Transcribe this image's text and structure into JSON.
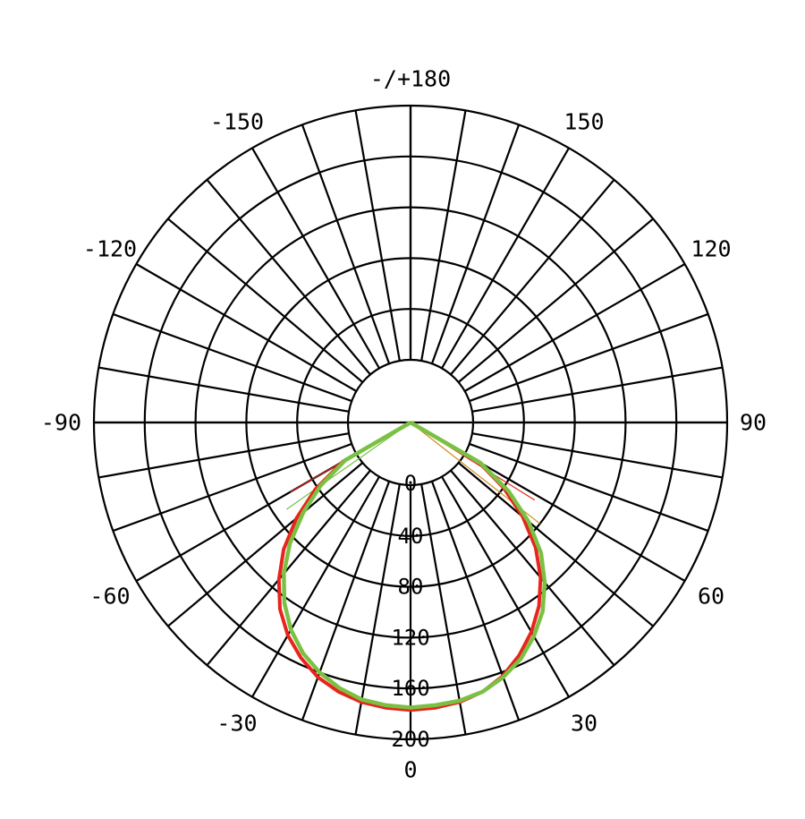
{
  "chart_data": {
    "type": "polar",
    "title": "",
    "angle_ticks": [
      {
        "angle": 180,
        "label": "-/+180"
      },
      {
        "angle": -150,
        "label": "-150"
      },
      {
        "angle": 150,
        "label": "150"
      },
      {
        "angle": -120,
        "label": "-120"
      },
      {
        "angle": 120,
        "label": "120"
      },
      {
        "angle": -90,
        "label": "-90"
      },
      {
        "angle": 90,
        "label": "90"
      },
      {
        "angle": -60,
        "label": "-60"
      },
      {
        "angle": 60,
        "label": "60"
      },
      {
        "angle": -30,
        "label": "-30"
      },
      {
        "angle": 30,
        "label": "30"
      },
      {
        "angle": 0,
        "label": "0"
      }
    ],
    "radial_ticks": [
      "0",
      "40",
      "80",
      "120",
      "160",
      "200"
    ],
    "radial_values": [
      0,
      40,
      80,
      120,
      160,
      200
    ],
    "radial_max": 200,
    "spoke_step_deg": 10,
    "series": [
      {
        "color": "#e8241c",
        "stroke_width": 4,
        "points": [
          [
            -60,
            12
          ],
          [
            -55,
            42
          ],
          [
            -50,
            68
          ],
          [
            -45,
            92
          ],
          [
            -40,
            112
          ],
          [
            -35,
            130
          ],
          [
            -30,
            144
          ],
          [
            -25,
            155
          ],
          [
            -20,
            164
          ],
          [
            -15,
            170
          ],
          [
            -10,
            174
          ],
          [
            -5,
            176
          ],
          [
            0,
            177
          ],
          [
            5,
            176
          ],
          [
            10,
            174
          ],
          [
            15,
            170
          ],
          [
            20,
            163
          ],
          [
            25,
            153
          ],
          [
            30,
            141
          ],
          [
            35,
            127
          ],
          [
            40,
            110
          ],
          [
            45,
            90
          ],
          [
            50,
            66
          ],
          [
            55,
            40
          ],
          [
            60,
            12
          ]
        ]
      },
      {
        "color": "#7ac143",
        "stroke_width": 4.5,
        "points": [
          [
            -60,
            10
          ],
          [
            -55,
            37
          ],
          [
            -50,
            61
          ],
          [
            -45,
            85
          ],
          [
            -40,
            106
          ],
          [
            -35,
            124
          ],
          [
            -30,
            139
          ],
          [
            -25,
            151
          ],
          [
            -20,
            160
          ],
          [
            -15,
            167
          ],
          [
            -10,
            172
          ],
          [
            -5,
            174
          ],
          [
            0,
            175
          ],
          [
            5,
            174
          ],
          [
            10,
            173
          ],
          [
            15,
            170
          ],
          [
            20,
            164
          ],
          [
            25,
            156
          ],
          [
            30,
            145
          ],
          [
            35,
            132
          ],
          [
            40,
            115
          ],
          [
            45,
            96
          ],
          [
            50,
            72
          ],
          [
            55,
            45
          ],
          [
            60,
            14
          ]
        ]
      }
    ],
    "rays": [
      {
        "angle": -60,
        "value": 60,
        "color": "#e8241c"
      },
      {
        "angle": -55,
        "value": 70,
        "color": "#7ac143"
      },
      {
        "angle": 58,
        "value": 66,
        "color": "#e8241c"
      },
      {
        "angle": 52,
        "value": 80,
        "color": "#d08a1e"
      }
    ]
  }
}
